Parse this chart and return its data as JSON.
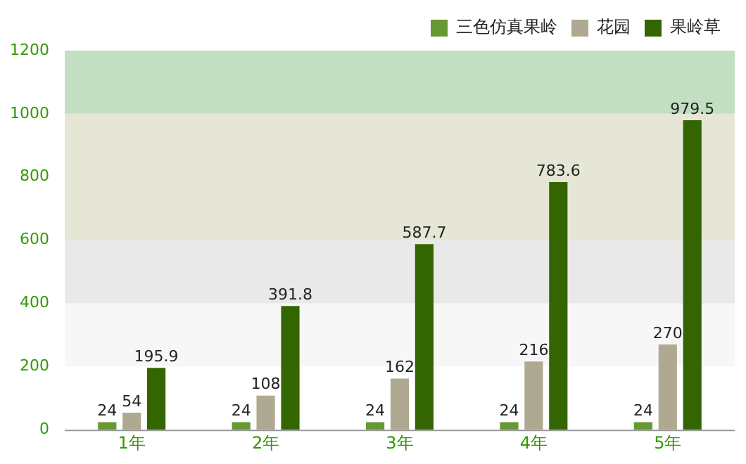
{
  "chart_data": {
    "type": "bar",
    "categories": [
      "1年",
      "2年",
      "3年",
      "4年",
      "5年"
    ],
    "series": [
      {
        "name": "三色仿真果岭",
        "color": "#669933",
        "values": [
          24,
          24,
          24,
          24,
          24
        ]
      },
      {
        "name": "花园",
        "color": "#aea990",
        "values": [
          54,
          108,
          162,
          216,
          270
        ]
      },
      {
        "name": "果岭草",
        "color": "#336600",
        "values": [
          195.9,
          391.8,
          587.7,
          783.6,
          979.5
        ]
      }
    ],
    "ylim": [
      0,
      1200
    ],
    "yticks": [
      0,
      200,
      400,
      600,
      800,
      1000,
      1200
    ],
    "bands": [
      {
        "axis": "y",
        "from": 200,
        "to": 400,
        "color": "#f7f7f7"
      },
      {
        "axis": "y",
        "from": 400,
        "to": 600,
        "color": "#e9e9e9"
      },
      {
        "axis": "y",
        "from": 600,
        "to": 1000,
        "color": "#e6e6d6"
      },
      {
        "axis": "y",
        "from": 1000,
        "to": 1200,
        "color": "#c2dfc2"
      }
    ],
    "data_labels": true,
    "grid": false,
    "legend": "top right"
  }
}
